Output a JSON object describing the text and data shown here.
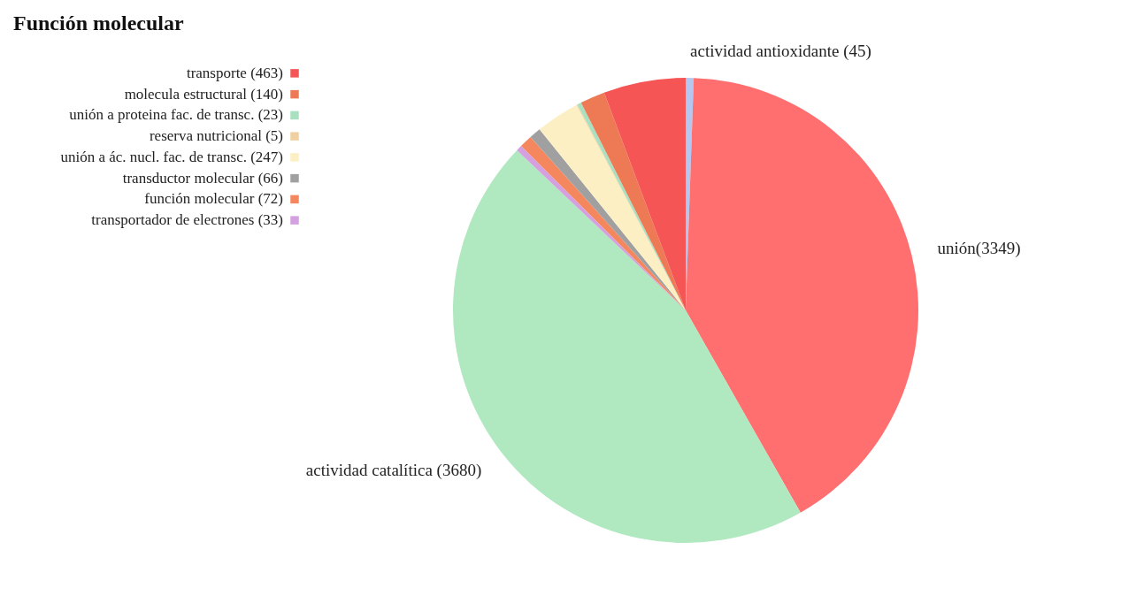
{
  "chart_data": {
    "type": "pie",
    "title": "Función molecular",
    "legend": "top left",
    "categories": [
      "actividad antioxidante (45)",
      "unión(3349)",
      "actividad catalítica (3680)",
      "transportador de electrones (33)",
      "función molecular (72)",
      "transductor molecular (66)",
      "unión a ác. nucl. fac. de transc.  (247)",
      "reserva nutricional (5)",
      "unión a proteina fac. de transc. (23)",
      "molecula estructural (140)",
      "transporte (463)"
    ],
    "values": [
      45,
      3349,
      3680,
      33,
      72,
      66,
      247,
      5,
      23,
      140,
      463
    ],
    "colors": [
      "#b4c7f0",
      "#ff6f6f",
      "#b0e8c0",
      "#d4a0e0",
      "#f5875f",
      "#a0a0a0",
      "#fdefc4",
      "#f0d0a0",
      "#a8e0c0",
      "#ee7a55",
      "#f55555"
    ]
  }
}
